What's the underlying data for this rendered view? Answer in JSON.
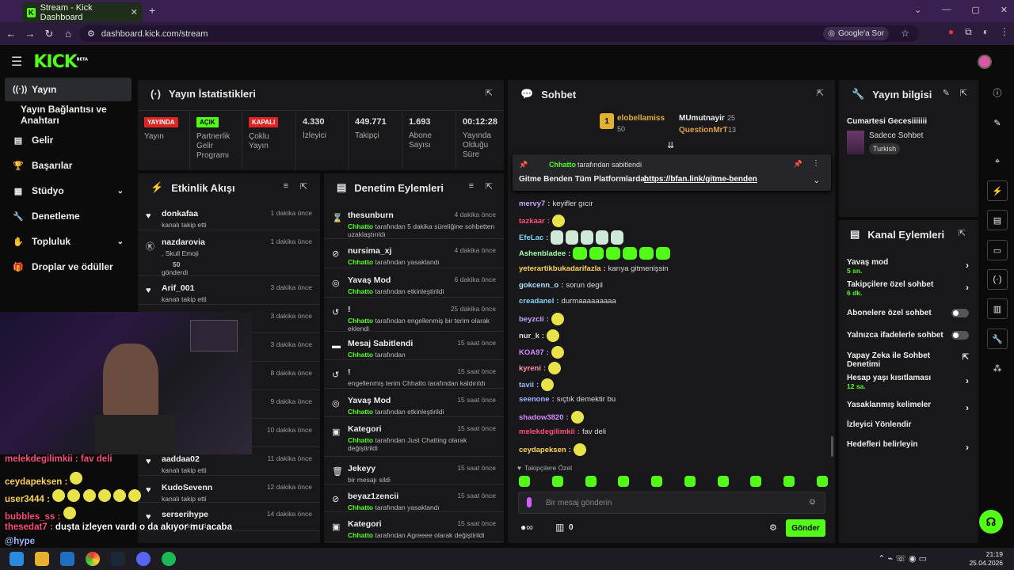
{
  "browser": {
    "tab_title": "Stream - Kick Dashboard",
    "url": "dashboard.kick.com/stream",
    "google_btn": "Google'a Sor"
  },
  "brand": {
    "logo": "KICK",
    "beta": "BETA",
    "accent": "#53fc18"
  },
  "sidebar": [
    {
      "label": "Yayın",
      "icon": "broadcast-icon",
      "active": true
    },
    {
      "label": "Yayın Bağlantısı ve Anahtarı",
      "icon": ""
    },
    {
      "label": "Gelir",
      "icon": "revenue-icon"
    },
    {
      "label": "Başarılar",
      "icon": "trophy-icon"
    },
    {
      "label": "Stüdyo",
      "icon": "studio-icon"
    },
    {
      "label": "Denetleme",
      "icon": "wrench-icon"
    },
    {
      "label": "Topluluk",
      "icon": "community-icon"
    },
    {
      "label": "Droplar ve ödüller",
      "icon": "gift-icon"
    }
  ],
  "stats": {
    "title": "Yayın İstatistikleri",
    "items": [
      {
        "badge": "YAYINDA",
        "label": "Yayın"
      },
      {
        "badge": "AÇIK",
        "label": "Partnerlik Gelir Programı"
      },
      {
        "badge": "KAPALI",
        "label": "Çoklu Yayın"
      },
      {
        "value": "4.330",
        "label": "İzleyici"
      },
      {
        "value": "449.771",
        "label": "Takipçi"
      },
      {
        "value": "1.693",
        "label": "Abone Sayısı"
      },
      {
        "value": "00:12:28",
        "label": "Yayında Olduğu Süre"
      }
    ]
  },
  "activity": {
    "title": "Etkinlik Akışı",
    "items": [
      {
        "name": "donkafaa",
        "desc": "kanalı takip etti",
        "time": "1 dakika önce"
      },
      {
        "name": "nazdarovia",
        "desc": ", Skull Emoji",
        "desc2": "50",
        "desc3": "gönderdi",
        "time": "1 dakika önce"
      },
      {
        "name": "Arif_001",
        "desc": "kanalı takip etti",
        "time": "3 dakika önce"
      },
      {
        "name": "",
        "desc": "",
        "time": "3 dakika önce"
      },
      {
        "name": "",
        "desc": "",
        "time": "3 dakika önce"
      },
      {
        "name": "",
        "desc": "",
        "time": "8 dakika önce"
      },
      {
        "name": "",
        "desc": "",
        "time": "9 dakika önce"
      },
      {
        "name": "",
        "desc": "",
        "time": "10 dakika önce"
      },
      {
        "name": "aaddaa02",
        "desc": "kanalı takip etti",
        "time": "11 dakika önce"
      },
      {
        "name": "KudoSevenn",
        "desc": "kanalı takip etti",
        "time": "12 dakika önce"
      },
      {
        "name": "serserihype",
        "desc": "kanalı takip etti",
        "time": "14 dakika önce"
      }
    ]
  },
  "moderation": {
    "title": "Denetim Eylemleri",
    "items": [
      {
        "name": "thesunburn",
        "desc": "tarafından 5 dakika süreliğine sohbetten uzaklaştırıldı",
        "time": "4 dakika önce"
      },
      {
        "name": "nursima_xj",
        "desc": "tarafından yasaklandı",
        "time": "4 dakika önce"
      },
      {
        "name": "Yavaş Mod",
        "desc": "tarafından etkinleştirildi",
        "time": "6 dakika önce"
      },
      {
        "name": "!",
        "desc": "tarafından engellenmiş bir terim olarak eklendi",
        "time": "25 dakika önce"
      },
      {
        "name": "Mesaj Sabitlendi",
        "desc": "tarafından",
        "time": "15 saat önce"
      },
      {
        "name": "!",
        "desc": "engellenmiş terim Chhatto tarafından kaldırıldı",
        "time": "15 saat önce"
      },
      {
        "name": "Yavaş Mod",
        "desc": "tarafından etkinleştirildi",
        "time": "15 saat önce"
      },
      {
        "name": "Kategori",
        "desc": "tarafından Just Chatting olarak değiştirildi",
        "time": "15 saat önce"
      },
      {
        "name": "Jekeyy",
        "desc": "bir mesajı sildi",
        "time": "15 saat önce"
      },
      {
        "name": "beyaz1zencii",
        "desc": "tarafından yasaklandı",
        "time": "15 saat önce"
      },
      {
        "name": "Kategori",
        "desc": "tarafından Agreeee olarak değiştirildi",
        "time": "15 saat önce"
      }
    ],
    "moderator": "Chhatto"
  },
  "chat": {
    "title": "Sohbet",
    "top": [
      {
        "name": "elobellamiss",
        "count": "50",
        "rank": "1"
      },
      {
        "name": "MUmutnayir",
        "count": "25"
      },
      {
        "name": "QuestionMrT",
        "count": "13"
      }
    ],
    "pinned": {
      "by": "Chhatto",
      "by_suffix": "tarafından sabitlendi",
      "text": "Gitme Benden Tüm Platformlarda:",
      "link": "https://bfan.link/gitme-benden"
    },
    "messages": [
      {
        "user": "mervy7",
        "text": "keyifler gıcır",
        "color": "#c8a2ff"
      },
      {
        "user": "tazkaar",
        "text": "",
        "color": "#ff4d7a"
      },
      {
        "user": "EfeLac",
        "text": "",
        "color": "#7fd4ff"
      },
      {
        "user": "Ashenbladee",
        "text": "",
        "color": "#9effa8"
      },
      {
        "user": "yeterartikbukadarifazla",
        "text": "karıya gitmenişsin",
        "color": "#ffd54f"
      },
      {
        "user": "gokcenn_o",
        "text": "sorun degil",
        "color": "#b0e0ff"
      },
      {
        "user": "creadanel",
        "text": "durmaaaaaaaaa",
        "color": "#7fd4ff"
      },
      {
        "user": "beyzcii",
        "text": "",
        "color": "#c8a2ff"
      },
      {
        "user": "nur_k",
        "text": "",
        "color": "#ddd"
      },
      {
        "user": "KOA97",
        "text": "",
        "color": "#d38bff"
      },
      {
        "user": "kyreni",
        "text": "",
        "color": "#ff8fb0"
      },
      {
        "user": "tavii",
        "text": "",
        "color": "#9ab7ff"
      },
      {
        "user": "seenone",
        "text": "sıçtık demektir bu",
        "color": "#9ab7ff"
      },
      {
        "user": "shadow3820",
        "text": "",
        "color": "#d38bff"
      },
      {
        "user": "melekdegilimkii",
        "text": "fav deli",
        "color": "#ff4d7a"
      },
      {
        "user": "ceydapeksen",
        "text": "",
        "color": "#ffd54f"
      }
    ],
    "followers_only": "Takipçilere Özel",
    "input_placeholder": "Bir mesaj gönderin",
    "send": "Gönder",
    "gift_count": "0"
  },
  "streaminfo": {
    "title": "Yayın bilgisi",
    "stream_title": "Cumartesi Gecesiiiiiii",
    "category": "Sadece Sohbet",
    "tag": "Turkish"
  },
  "channel_actions": {
    "title": "Kanal Eylemleri",
    "items": [
      {
        "label": "Yavaş mod",
        "sub": "5 sn.",
        "kind": "arrow"
      },
      {
        "label": "Takipçilere özel sohbet",
        "sub": "6 dk.",
        "kind": "arrow"
      },
      {
        "label": "Abonelere özel sohbet",
        "sub": "",
        "kind": "toggle"
      },
      {
        "label": "Yalnızca ifadelerle sohbet",
        "sub": "",
        "kind": "toggle"
      },
      {
        "label": "Yapay Zeka ile Sohbet Denetimi",
        "sub": "",
        "kind": "ext"
      },
      {
        "label": "Hesap yaşı kısıtlaması",
        "sub": "12 sa.",
        "kind": "arrow"
      },
      {
        "label": "Yasaklanmış kelimeler",
        "sub": "",
        "kind": "arrow"
      },
      {
        "label": "İzleyici Yönlendir",
        "sub": "",
        "kind": "none"
      },
      {
        "label": "Hedefleri belirleyin",
        "sub": "",
        "kind": "arrow"
      }
    ]
  },
  "overlay_chat": [
    {
      "user": "melekdegilimkii",
      "text": "fav deli"
    },
    {
      "user": "ceydapeksen",
      "text": ""
    },
    {
      "user": "user3444",
      "text": ""
    },
    {
      "user": "bubbles_ss",
      "text": ""
    },
    {
      "user": "thesedat7",
      "text": "duşta izleyen vardı o da akıyor mu acaba"
    },
    {
      "user": "@hype",
      "text": ""
    }
  ],
  "taskbar": {
    "time": "21:19",
    "date": "25.04.2026"
  }
}
